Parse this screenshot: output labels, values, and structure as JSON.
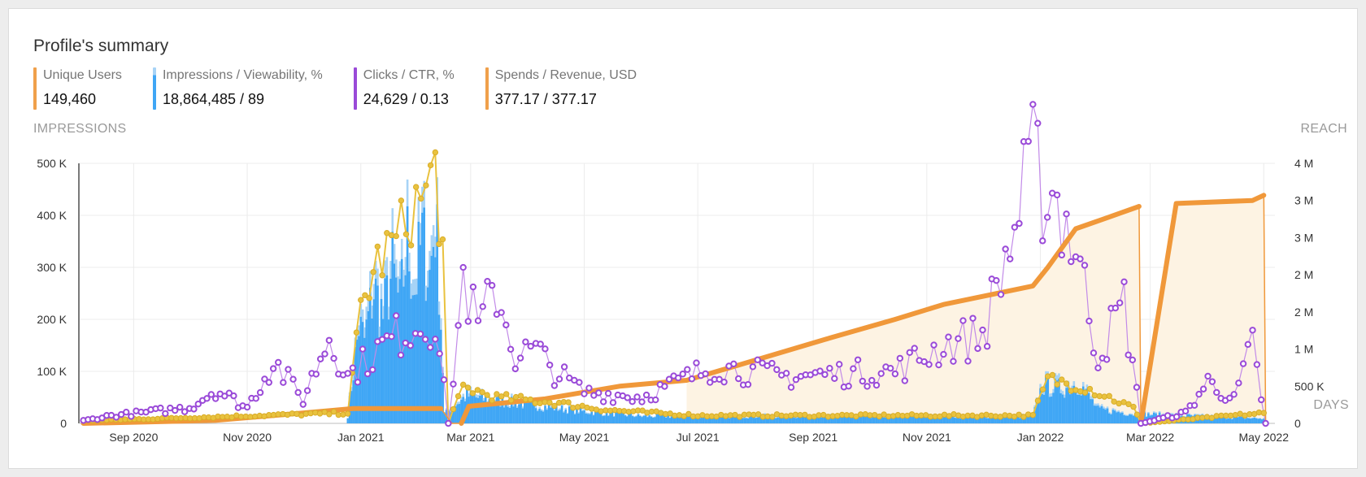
{
  "card": {
    "title": "Profile's summary"
  },
  "metrics": [
    {
      "label": "Unique Users",
      "value": "149,460",
      "color": "#f0a04b"
    },
    {
      "label": "Impressions / Viewability, %",
      "value": "18,864,485 / 89",
      "color": "#3fa6f5",
      "color2": "#a7d3f6"
    },
    {
      "label": "Clicks / CTR, %",
      "value": "24,629 / 0.13",
      "color": "#9a4ad8"
    },
    {
      "label": "Spends / Revenue, USD",
      "value": "377.17 / 377.17",
      "color": "#f0a04b"
    }
  ],
  "axes": {
    "left_title": "IMPRESSIONS",
    "right_title": "REACH",
    "x_title": "DAYS"
  },
  "chart_data": {
    "type": "line",
    "x_ticks": [
      "Sep 2020",
      "Nov 2020",
      "Jan 2021",
      "Mar 2021",
      "May 2021",
      "Jul 2021",
      "Sep 2021",
      "Nov 2021",
      "Jan 2022",
      "Mar 2022",
      "May 2022"
    ],
    "y_left_ticks": [
      "0",
      "100 K",
      "200 K",
      "300 K",
      "400 K",
      "500 K"
    ],
    "y_left_range": [
      0,
      500000
    ],
    "y_right_ticks": [
      "0",
      "500 K",
      "1 M",
      "2 M",
      "2 M",
      "3 M",
      "3 M",
      "4 M"
    ],
    "y_right_range": [
      0,
      3500000
    ],
    "grid": true,
    "colors": {
      "impressions": "#3fa6f5",
      "viewability": "#a7d3f6",
      "clicks": "#9a4ad8",
      "clicks_light": "#c28ae8",
      "spends": "#e9c23f",
      "reach": "#f0983a",
      "reach_fill": "#fdf3e3"
    },
    "series": [
      {
        "name": "Unique Users",
        "axis": "right",
        "points": [
          [
            "2020-08-05",
            0
          ],
          [
            "2020-10-15",
            40000
          ],
          [
            "2020-12-01",
            140000
          ],
          [
            "2020-12-28",
            200000
          ],
          [
            "2021-02-13",
            200000
          ],
          [
            "2021-02-19",
            0
          ],
          [
            "2021-02-24",
            0
          ],
          [
            "2021-02-28",
            230000
          ],
          [
            "2021-04-10",
            330000
          ],
          [
            "2021-05-20",
            500000
          ],
          [
            "2021-06-25",
            580000
          ],
          [
            "2021-07-25",
            800000
          ],
          [
            "2021-09-10",
            1150000
          ],
          [
            "2021-10-15",
            1400000
          ],
          [
            "2021-11-10",
            1600000
          ],
          [
            "2021-12-28",
            1850000
          ],
          [
            "2022-01-05",
            2100000
          ],
          [
            "2022-01-20",
            2620000
          ],
          [
            "2022-02-05",
            2760000
          ],
          [
            "2022-02-23",
            2920000
          ],
          [
            "2022-02-24",
            0
          ],
          [
            "2022-03-15",
            2960000
          ],
          [
            "2022-04-25",
            3000000
          ],
          [
            "2022-05-01",
            3070000
          ],
          [
            "2022-05-02",
            0
          ]
        ]
      },
      {
        "name": "Impressions / Viewability, %",
        "axis": "left",
        "points": [
          [
            "2020-12-25",
            15000
          ],
          [
            "2020-12-31",
            210000
          ],
          [
            "2021-01-03",
            180000
          ],
          [
            "2021-01-08",
            290000
          ],
          [
            "2021-01-13",
            230000
          ],
          [
            "2021-01-18",
            330000
          ],
          [
            "2021-01-22",
            250000
          ],
          [
            "2021-01-26",
            390000
          ],
          [
            "2021-01-30",
            290000
          ],
          [
            "2021-02-03",
            400000
          ],
          [
            "2021-02-07",
            320000
          ],
          [
            "2021-02-10",
            440000
          ],
          [
            "2021-02-12",
            320000
          ],
          [
            "2021-02-15",
            20000
          ],
          [
            "2021-02-27",
            60000
          ],
          [
            "2021-03-10",
            50000
          ],
          [
            "2021-04-01",
            40000
          ],
          [
            "2021-05-01",
            25000
          ],
          [
            "2021-06-01",
            15000
          ],
          [
            "2021-12-28",
            15000
          ],
          [
            "2022-01-02",
            80000
          ],
          [
            "2022-01-12",
            75000
          ],
          [
            "2022-01-22",
            85000
          ],
          [
            "2022-02-01",
            30000
          ],
          [
            "2022-02-20",
            20000
          ],
          [
            "2022-05-01",
            10000
          ]
        ]
      },
      {
        "name": "Clicks / CTR, %",
        "axis": "left",
        "points": [
          [
            "2020-08-05",
            5000
          ],
          [
            "2020-08-20",
            15000
          ],
          [
            "2020-09-05",
            20000
          ],
          [
            "2020-10-01",
            30000
          ],
          [
            "2020-10-15",
            65000
          ],
          [
            "2020-11-01",
            30000
          ],
          [
            "2020-11-15",
            120000
          ],
          [
            "2020-12-01",
            45000
          ],
          [
            "2020-12-15",
            170000
          ],
          [
            "2020-12-25",
            90000
          ],
          [
            "2021-01-10",
            140000
          ],
          [
            "2021-01-25",
            180000
          ],
          [
            "2021-02-10",
            200000
          ],
          [
            "2021-02-17",
            0
          ],
          [
            "2021-02-25",
            280000
          ],
          [
            "2021-03-05",
            180000
          ],
          [
            "2021-03-15",
            260000
          ],
          [
            "2021-03-25",
            130000
          ],
          [
            "2021-04-05",
            140000
          ],
          [
            "2021-04-15",
            100000
          ],
          [
            "2021-05-01",
            60000
          ],
          [
            "2021-06-01",
            50000
          ],
          [
            "2021-07-10",
            110000
          ],
          [
            "2021-08-15",
            90000
          ],
          [
            "2021-09-15",
            95000
          ],
          [
            "2021-10-15",
            100000
          ],
          [
            "2021-11-10",
            150000
          ],
          [
            "2021-12-01",
            170000
          ],
          [
            "2021-12-28",
            490000
          ],
          [
            "2022-01-10",
            430000
          ],
          [
            "2022-01-20",
            340000
          ],
          [
            "2022-02-01",
            130000
          ],
          [
            "2022-02-15",
            230000
          ],
          [
            "2022-02-24",
            0
          ],
          [
            "2022-03-20",
            20000
          ],
          [
            "2022-04-01",
            80000
          ],
          [
            "2022-04-15",
            45000
          ],
          [
            "2022-04-25",
            150000
          ],
          [
            "2022-05-02",
            0
          ]
        ]
      },
      {
        "name": "Spends / Revenue, USD",
        "axis": "left",
        "points": [
          [
            "2020-08-05",
            5000
          ],
          [
            "2020-12-25",
            20000
          ],
          [
            "2021-01-01",
            220000
          ],
          [
            "2021-01-10",
            310000
          ],
          [
            "2021-01-20",
            350000
          ],
          [
            "2021-01-28",
            410000
          ],
          [
            "2021-02-05",
            440000
          ],
          [
            "2021-02-10",
            490000
          ],
          [
            "2021-02-14",
            330000
          ],
          [
            "2021-02-17",
            0
          ],
          [
            "2021-02-25",
            70000
          ],
          [
            "2021-03-15",
            50000
          ],
          [
            "2021-04-15",
            40000
          ],
          [
            "2021-05-15",
            25000
          ],
          [
            "2021-07-01",
            15000
          ],
          [
            "2021-12-28",
            15000
          ],
          [
            "2022-01-05",
            85000
          ],
          [
            "2022-01-25",
            70000
          ],
          [
            "2022-02-20",
            30000
          ],
          [
            "2022-02-24",
            0
          ],
          [
            "2022-05-01",
            20000
          ]
        ]
      }
    ]
  }
}
